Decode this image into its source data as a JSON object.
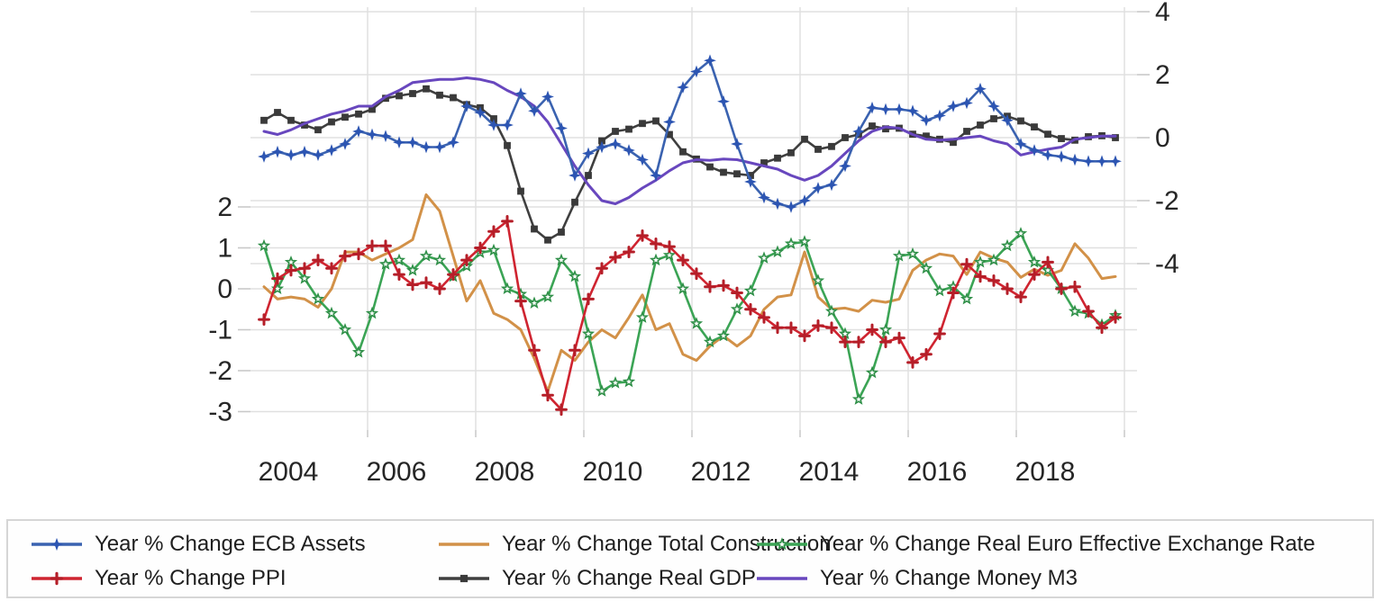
{
  "page": {
    "background": "#ffffff",
    "title": ""
  },
  "chart_data": {
    "type": "line",
    "title": "",
    "xlabel": "",
    "ylabel_left": "",
    "ylabel_right": "",
    "grid": true,
    "legend_position": "bottom",
    "x_axis": {
      "tick_labels": [
        "2004",
        "2006",
        "2008",
        "2010",
        "2012",
        "2014",
        "2016",
        "2018"
      ]
    },
    "left_axis": {
      "tick_labels": [
        "2",
        "1",
        "0",
        "-1",
        "-2",
        "-3"
      ],
      "tick_values": [
        2,
        1,
        0,
        -1,
        -2,
        -3
      ],
      "range": [
        -3.5,
        2.5
      ]
    },
    "right_axis": {
      "tick_labels": [
        "4",
        "2",
        "0",
        "-2",
        "-4"
      ],
      "tick_values": [
        4,
        2,
        0,
        -2,
        -4
      ],
      "range": [
        -5,
        4.5
      ]
    },
    "x": [
      2003.75,
      2004,
      2004.25,
      2004.5,
      2004.75,
      2005,
      2005.25,
      2005.5,
      2005.75,
      2006,
      2006.25,
      2006.5,
      2006.75,
      2007,
      2007.25,
      2007.5,
      2007.75,
      2008,
      2008.25,
      2008.5,
      2008.75,
      2009,
      2009.25,
      2009.5,
      2009.75,
      2010,
      2010.25,
      2010.5,
      2010.75,
      2011,
      2011.25,
      2011.5,
      2011.75,
      2012,
      2012.25,
      2012.5,
      2012.75,
      2013,
      2013.25,
      2013.5,
      2013.75,
      2014,
      2014.25,
      2014.5,
      2014.75,
      2015,
      2015.25,
      2015.5,
      2015.75,
      2016,
      2016.25,
      2016.5,
      2016.75,
      2017,
      2017.25,
      2017.5,
      2017.75,
      2018,
      2018.25,
      2018.5,
      2018.75,
      2019,
      2019.25,
      2019.5
    ],
    "series": [
      {
        "name": "Year % Change ECB Assets",
        "color": "#3a62b0",
        "marker_color": "#2c55b2",
        "axis": "right",
        "marker": "star4",
        "values": [
          -0.6,
          -0.45,
          -0.55,
          -0.45,
          -0.55,
          -0.4,
          -0.2,
          0.2,
          0.1,
          0.05,
          -0.15,
          -0.15,
          -0.3,
          -0.3,
          -0.15,
          1.0,
          0.8,
          0.4,
          0.4,
          1.4,
          0.85,
          1.3,
          0.3,
          -1.2,
          -0.5,
          -0.3,
          -0.2,
          -0.4,
          -0.7,
          -1.2,
          0.5,
          1.6,
          2.1,
          2.45,
          1.15,
          -0.2,
          -1.4,
          -1.9,
          -2.1,
          -2.2,
          -2.0,
          -1.6,
          -1.5,
          -0.9,
          0.2,
          0.95,
          0.9,
          0.9,
          0.85,
          0.55,
          0.7,
          1.0,
          1.1,
          1.55,
          1.0,
          0.55,
          -0.2,
          -0.4,
          -0.55,
          -0.6,
          -0.7,
          -0.75,
          -0.75,
          -0.75
        ]
      },
      {
        "name": "Year % Change Total Construction",
        "color": "#d29148",
        "marker_color": "#d29148",
        "axis": "left",
        "marker": "none",
        "values": [
          0.05,
          -0.25,
          -0.2,
          -0.25,
          -0.45,
          0.0,
          0.9,
          0.9,
          0.7,
          0.85,
          1.0,
          1.2,
          2.3,
          1.9,
          0.8,
          -0.3,
          0.2,
          -0.6,
          -0.75,
          -1.0,
          -1.7,
          -2.5,
          -1.5,
          -1.75,
          -1.3,
          -1.0,
          -1.2,
          -0.7,
          -0.15,
          -1.0,
          -0.85,
          -1.6,
          -1.75,
          -1.4,
          -1.15,
          -1.4,
          -1.15,
          -0.5,
          -0.2,
          -0.15,
          0.9,
          -0.2,
          -0.5,
          -0.47,
          -0.55,
          -0.28,
          -0.33,
          -0.25,
          0.45,
          0.7,
          0.85,
          0.8,
          0.35,
          0.9,
          0.75,
          0.65,
          0.28,
          0.48,
          0.33,
          0.45,
          1.1,
          0.75,
          0.25,
          0.3
        ]
      },
      {
        "name": "Year % Change Real Euro Effective Exchange Rate",
        "color": "#3ba455",
        "marker_color": "#2e8f47",
        "axis": "left",
        "marker": "star5",
        "values": [
          1.05,
          0.0,
          0.65,
          0.25,
          -0.25,
          -0.6,
          -1.0,
          -1.55,
          -0.6,
          0.6,
          0.7,
          0.45,
          0.8,
          0.7,
          0.3,
          0.55,
          0.88,
          0.94,
          0.0,
          -0.13,
          -0.35,
          -0.2,
          0.7,
          0.3,
          -1.1,
          -2.5,
          -2.3,
          -2.27,
          -0.7,
          0.7,
          0.82,
          0.0,
          -0.85,
          -1.3,
          -1.15,
          -0.5,
          -0.05,
          0.75,
          0.9,
          1.1,
          1.15,
          0.2,
          -0.55,
          -1.1,
          -2.7,
          -2.05,
          -1.0,
          0.8,
          0.85,
          0.5,
          -0.05,
          0.05,
          -0.25,
          0.65,
          0.7,
          1.05,
          1.35,
          0.65,
          0.45,
          0.0,
          -0.55,
          -0.6,
          -0.88,
          -0.65
        ]
      },
      {
        "name": "Year % Change PPI",
        "color": "#cf2430",
        "marker_color": "#b51e28",
        "axis": "left",
        "marker": "plus",
        "values": [
          -0.75,
          0.25,
          0.45,
          0.5,
          0.7,
          0.5,
          0.8,
          0.85,
          1.05,
          1.05,
          0.35,
          0.1,
          0.15,
          0.0,
          0.35,
          0.7,
          1.0,
          1.4,
          1.65,
          -0.3,
          -1.5,
          -2.6,
          -2.95,
          -1.5,
          -0.25,
          0.5,
          0.77,
          0.9,
          1.3,
          1.1,
          1.03,
          0.7,
          0.37,
          0.05,
          0.08,
          -0.1,
          -0.5,
          -0.7,
          -0.95,
          -0.95,
          -1.15,
          -0.9,
          -0.95,
          -1.3,
          -1.3,
          -1.0,
          -1.3,
          -1.2,
          -1.8,
          -1.6,
          -1.1,
          -0.1,
          0.6,
          0.3,
          0.2,
          0.0,
          -0.2,
          0.35,
          0.65,
          0.0,
          0.05,
          -0.55,
          -0.95,
          -0.7
        ]
      },
      {
        "name": "Year % Change Real GDP",
        "color": "#3f3f3f",
        "marker_color": "#3a3a3a",
        "axis": "right",
        "marker": "square",
        "values": [
          0.55,
          0.8,
          0.55,
          0.4,
          0.25,
          0.5,
          0.65,
          0.75,
          0.9,
          1.25,
          1.33,
          1.4,
          1.55,
          1.35,
          1.27,
          1.05,
          0.95,
          0.6,
          -0.25,
          -1.7,
          -2.9,
          -3.25,
          -3.0,
          -2.05,
          -1.2,
          -0.1,
          0.2,
          0.27,
          0.45,
          0.53,
          0.1,
          -0.45,
          -0.68,
          -0.93,
          -1.1,
          -1.15,
          -1.2,
          -0.8,
          -0.65,
          -0.48,
          -0.05,
          -0.37,
          -0.28,
          0.0,
          0.1,
          0.37,
          0.28,
          0.3,
          0.11,
          0.05,
          -0.05,
          -0.15,
          0.2,
          0.4,
          0.6,
          0.68,
          0.53,
          0.34,
          0.11,
          -0.03,
          -0.08,
          0.03,
          0.06,
          0.0
        ]
      },
      {
        "name": "Year % Change Money M3",
        "color": "#6847be",
        "marker_color": "#6847be",
        "axis": "right",
        "marker": "none",
        "values": [
          0.2,
          0.1,
          0.25,
          0.45,
          0.6,
          0.75,
          0.85,
          1.0,
          1.0,
          1.3,
          1.5,
          1.75,
          1.8,
          1.85,
          1.85,
          1.9,
          1.85,
          1.75,
          1.5,
          1.3,
          1.0,
          0.5,
          -0.2,
          -0.9,
          -1.5,
          -2.0,
          -2.1,
          -1.9,
          -1.6,
          -1.35,
          -1.05,
          -0.8,
          -0.7,
          -0.72,
          -0.68,
          -0.7,
          -0.8,
          -0.9,
          -1.0,
          -1.2,
          -1.35,
          -1.2,
          -0.9,
          -0.5,
          -0.1,
          0.2,
          0.34,
          0.3,
          0.1,
          -0.05,
          -0.08,
          -0.05,
          0.0,
          0.05,
          -0.1,
          -0.2,
          -0.55,
          -0.45,
          -0.37,
          -0.3,
          -0.05,
          0.0,
          0.05,
          0.05
        ]
      }
    ],
    "legend_rows": [
      [
        0,
        1,
        2
      ],
      [
        3,
        4,
        5
      ]
    ],
    "colors": {
      "gridline": "#e0e0e0",
      "tick": "#c9c9c9",
      "axis_text": "#262626",
      "legend_border": "#d6d6d6"
    }
  }
}
